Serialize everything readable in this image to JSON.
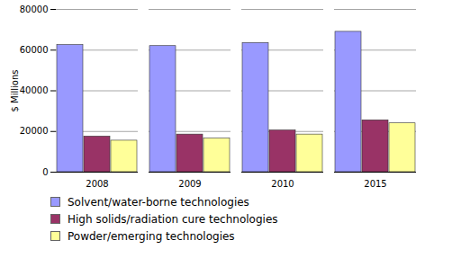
{
  "chart_data": {
    "type": "bar",
    "categories": [
      "2008",
      "2009",
      "2010",
      "2015"
    ],
    "series": [
      {
        "name": "Solvent/water-borne technologies",
        "color": "#9999ff",
        "values": [
          62500,
          62000,
          63500,
          69000
        ]
      },
      {
        "name": "High solids/radiation cure technologies",
        "color": "#993366",
        "values": [
          17500,
          18500,
          20500,
          25500
        ]
      },
      {
        "name": "Powder/emerging technologies",
        "color": "#ffff99",
        "values": [
          15500,
          16500,
          18500,
          24000
        ]
      }
    ],
    "y_label": "$ Millions",
    "ylim": [
      0,
      80000
    ],
    "yticks": [
      0,
      20000,
      40000,
      60000,
      80000
    ],
    "grid": true,
    "legend": "bottom"
  }
}
